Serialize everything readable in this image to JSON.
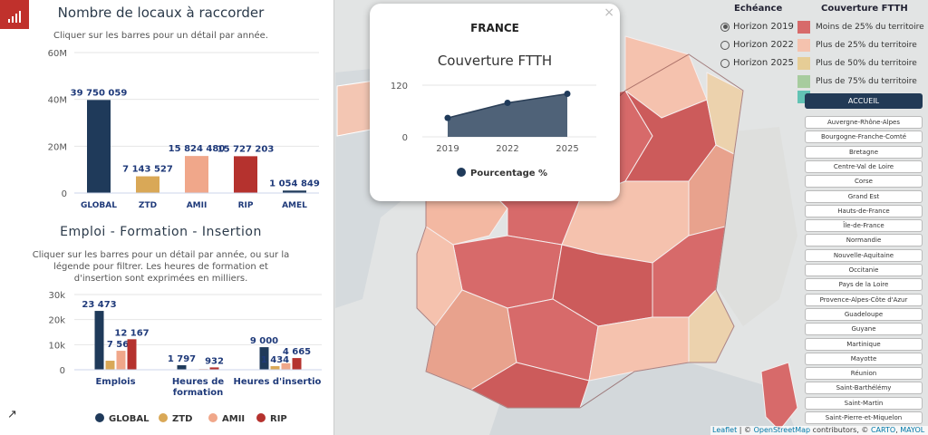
{
  "panel": {
    "title1": "Nombre de locaux à raccorder",
    "sub1": "Cliquer sur les barres pour un détail par année.",
    "title2": "Emploi - Formation - Insertion",
    "sub2a": "Cliquer sur les barres pour un détail par année, ou sur la",
    "sub2b": "légende pour filtrer. Les heures de formation et",
    "sub2c": "d'insertion sont exprimées en milliers.",
    "external_link_icon": "external-link-icon"
  },
  "colors": {
    "global": "#1f3a5a",
    "ztd": "#d9a857",
    "amii": "#f0a78a",
    "rip": "#b5322e"
  },
  "chart_data": [
    {
      "type": "bar",
      "categories": [
        "GLOBAL",
        "ZTD",
        "AMII",
        "RIP",
        "AMEL"
      ],
      "values": [
        39750059,
        7143527,
        15824480,
        15727203,
        1054849
      ],
      "labels": [
        "39 750 059",
        "7 143 527",
        "15 824 480",
        "15 727 203",
        "1 054 849"
      ],
      "yticks": [
        "60M",
        "40M",
        "20M",
        "0"
      ],
      "ylim": [
        0,
        60000000
      ],
      "title": "Nombre de locaux à raccorder"
    },
    {
      "type": "bar",
      "categories": [
        "Emplois",
        "Heures de formation",
        "Heures d'insertion"
      ],
      "category_lines": [
        [
          "Emplois"
        ],
        [
          "Heures de",
          "formation"
        ],
        [
          "Heures d'insertion"
        ]
      ],
      "series": [
        {
          "name": "GLOBAL",
          "values": [
            23473,
            1797,
            9000
          ],
          "labels": [
            "23 473",
            "1 797",
            "9 000"
          ]
        },
        {
          "name": "ZTD",
          "values": [
            3600,
            150,
            1434
          ],
          "labels": [
            "",
            "",
            "1 434"
          ]
        },
        {
          "name": "AMII",
          "values": [
            7564,
            300,
            2600
          ],
          "labels": [
            "7 564",
            "",
            ""
          ]
        },
        {
          "name": "RIP",
          "values": [
            12167,
            932,
            4665
          ],
          "labels": [
            "12 167",
            "932",
            "4 665"
          ]
        }
      ],
      "yticks": [
        "30k",
        "20k",
        "10k",
        "0"
      ],
      "ylim": [
        0,
        30000
      ],
      "title": "Emploi - Formation - Insertion"
    },
    {
      "type": "area",
      "x": [
        "2019",
        "2022",
        "2025"
      ],
      "values": [
        44,
        79,
        100
      ],
      "yticks": [
        "120",
        "0"
      ],
      "ylim": [
        0,
        120
      ],
      "title": "Couverture FTTH",
      "legend": "Pourcentage %"
    }
  ],
  "popup": {
    "heading": "FRANCE",
    "close": "×"
  },
  "echeance": {
    "title": "Echéance",
    "options": [
      "Horizon 2019",
      "Horizon 2022",
      "Horizon 2025"
    ],
    "selected": "Horizon 2019"
  },
  "legend": {
    "title": "Couverture FTTH",
    "items": [
      {
        "label": "Moins de 25% du territoire",
        "color": "#d76a6a"
      },
      {
        "label": "Plus de 25% du territoire",
        "color": "#f5c2ae"
      },
      {
        "label": "Plus de 50% du territoire",
        "color": "#e6cd96"
      },
      {
        "label": "Plus de 75% du territoire",
        "color": "#a7cc9e"
      }
    ],
    "extra_color": "#62c3b4"
  },
  "regions": {
    "home": "ACCUEIL",
    "items": [
      "Auvergne-Rhône-Alpes",
      "Bourgogne-Franche-Comté",
      "Bretagne",
      "Centre-Val de Loire",
      "Corse",
      "Grand Est",
      "Hauts-de-France",
      "Île-de-France",
      "Normandie",
      "Nouvelle-Aquitaine",
      "Occitanie",
      "Pays de la Loire",
      "Provence-Alpes-Côte d'Azur",
      "Guadeloupe",
      "Guyane",
      "Martinique",
      "Mayotte",
      "Réunion",
      "Saint-Barthélémy",
      "Saint-Martin",
      "Saint-Pierre-et-Miquelon"
    ]
  },
  "attribution": {
    "leaflet": "Leaflet",
    "sep1": " | © ",
    "osm": "OpenStreetMap",
    "contrib": " contributors, © ",
    "carto": "CARTO",
    "sep2": ", ",
    "mayol": "MAYOL"
  }
}
